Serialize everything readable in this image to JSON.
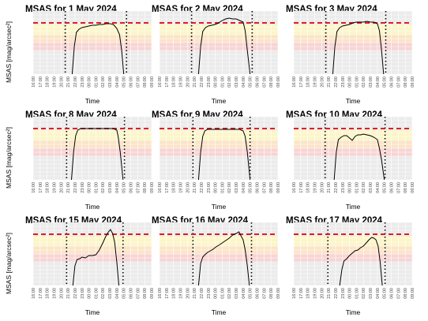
{
  "ylabel": "MSAS [mag/arcsec²]",
  "colors": {
    "panel_bg": "#ebebeb",
    "grid": "#ffffff",
    "band_yellow": "#fbf5c8",
    "band_orange": "#fbe4c8",
    "band_pink": "#f8d4d4",
    "reference_line": "#e00000",
    "curve": "#000000",
    "night_marker": "#000000"
  },
  "chart_data": [
    {
      "type": "line",
      "title": "MSAS for 1 May 2024",
      "xlabel": "Time",
      "x_ticks": [
        "16:00",
        "17:00",
        "18:00",
        "19:00",
        "20:00",
        "21:00",
        "22:00",
        "23:00",
        "00:00",
        "01:00",
        "02:00",
        "03:00",
        "04:00",
        "05:00",
        "06:00",
        "07:00",
        "08:00",
        "09:00"
      ],
      "xlim_hours": [
        16,
        33
      ],
      "ylim": [
        15,
        23
      ],
      "reference_value": 21.5,
      "night_start_hour": 20.6,
      "night_end_hour": 29.4,
      "bands": [
        {
          "from": 20,
          "to": 21.3,
          "color": "yellow"
        },
        {
          "from": 19,
          "to": 20,
          "color": "orange"
        },
        {
          "from": 18,
          "to": 19,
          "color": "pink"
        }
      ],
      "series": [
        {
          "hours": [
            21.6,
            21.9,
            22.2,
            22.6,
            23.0,
            23.5,
            24.0,
            24.5,
            25.0,
            25.5,
            26.0,
            26.5,
            27.0,
            27.5,
            28.0,
            28.4,
            28.7,
            29.0
          ],
          "values": [
            15.0,
            18.5,
            20.3,
            20.7,
            20.9,
            21.0,
            21.1,
            21.2,
            21.2,
            21.3,
            21.3,
            21.4,
            21.4,
            21.3,
            20.8,
            20.0,
            18.0,
            15.0
          ]
        }
      ]
    },
    {
      "type": "line",
      "title": "MSAS for 2 May 2024",
      "xlabel": "Time",
      "x_ticks": [
        "16:00",
        "17:00",
        "18:00",
        "19:00",
        "20:00",
        "21:00",
        "22:00",
        "23:00",
        "00:00",
        "01:00",
        "02:00",
        "03:00",
        "04:00",
        "05:00",
        "06:00",
        "07:00",
        "08:00",
        "09:00"
      ],
      "xlim_hours": [
        16,
        33
      ],
      "ylim": [
        15,
        23
      ],
      "reference_value": 21.5,
      "night_start_hour": 20.6,
      "night_end_hour": 29.3,
      "bands": [
        {
          "from": 20,
          "to": 21.3,
          "color": "yellow"
        },
        {
          "from": 19,
          "to": 20,
          "color": "orange"
        },
        {
          "from": 18,
          "to": 19,
          "color": "pink"
        }
      ],
      "series": [
        {
          "hours": [
            21.6,
            21.9,
            22.2,
            22.6,
            23.0,
            23.5,
            24.0,
            24.5,
            25.0,
            25.5,
            26.0,
            26.5,
            27.0,
            27.5,
            28.0,
            28.3,
            28.6,
            29.0
          ],
          "values": [
            15.0,
            18.5,
            20.4,
            20.9,
            21.1,
            21.2,
            21.3,
            21.5,
            21.8,
            22.0,
            22.1,
            22.0,
            22.0,
            21.8,
            21.6,
            20.5,
            18.0,
            15.0
          ]
        }
      ]
    },
    {
      "type": "line",
      "title": "MSAS for 3 May 2024",
      "xlabel": "Time",
      "x_ticks": [
        "16:00",
        "17:00",
        "18:00",
        "19:00",
        "20:00",
        "21:00",
        "22:00",
        "23:00",
        "00:00",
        "01:00",
        "02:00",
        "03:00",
        "04:00",
        "05:00",
        "06:00",
        "07:00",
        "08:00",
        "09:00"
      ],
      "xlim_hours": [
        16,
        33
      ],
      "ylim": [
        15,
        23
      ],
      "reference_value": 21.5,
      "night_start_hour": 20.6,
      "night_end_hour": 29.2,
      "bands": [
        {
          "from": 20,
          "to": 21.3,
          "color": "yellow"
        },
        {
          "from": 19,
          "to": 20,
          "color": "orange"
        },
        {
          "from": 18,
          "to": 19,
          "color": "pink"
        }
      ],
      "series": [
        {
          "hours": [
            21.6,
            21.9,
            22.2,
            22.6,
            23.0,
            23.5,
            24.0,
            24.5,
            25.0,
            25.5,
            26.0,
            26.5,
            27.0,
            27.5,
            28.0,
            28.3,
            28.6,
            28.9
          ],
          "values": [
            15.0,
            18.5,
            20.4,
            20.9,
            21.1,
            21.2,
            21.3,
            21.5,
            21.6,
            21.6,
            21.6,
            21.7,
            21.6,
            21.6,
            21.4,
            20.5,
            18.0,
            15.0
          ]
        }
      ]
    },
    {
      "type": "line",
      "title": "MSAS for 8 May 2024",
      "xlabel": "Time",
      "x_ticks": [
        "16:00",
        "17:00",
        "18:00",
        "19:00",
        "20:00",
        "21:00",
        "22:00",
        "23:00",
        "00:00",
        "01:00",
        "02:00",
        "03:00",
        "04:00",
        "05:00",
        "06:00",
        "07:00",
        "08:00",
        "09:00"
      ],
      "xlim_hours": [
        16,
        33
      ],
      "ylim": [
        15,
        23
      ],
      "reference_value": 21.5,
      "night_start_hour": 20.8,
      "night_end_hour": 29.1,
      "bands": [
        {
          "from": 20,
          "to": 21.3,
          "color": "yellow"
        },
        {
          "from": 19,
          "to": 20,
          "color": "orange"
        },
        {
          "from": 18,
          "to": 19,
          "color": "pink"
        }
      ],
      "series": [
        {
          "hours": [
            21.5,
            21.8,
            22.1,
            22.4,
            22.8,
            23.5,
            24.0,
            24.5,
            25.0,
            25.5,
            26.0,
            26.5,
            27.0,
            27.5,
            28.0,
            28.2,
            28.5,
            28.9
          ],
          "values": [
            15.0,
            18.5,
            20.6,
            21.3,
            21.5,
            21.5,
            21.5,
            21.5,
            21.5,
            21.5,
            21.5,
            21.5,
            21.5,
            21.5,
            21.3,
            20.5,
            18.5,
            15.0
          ]
        }
      ]
    },
    {
      "type": "line",
      "title": "MSAS for 9 May 2024",
      "xlabel": "Time",
      "x_ticks": [
        "16:00",
        "17:00",
        "18:00",
        "19:00",
        "20:00",
        "21:00",
        "22:00",
        "23:00",
        "00:00",
        "01:00",
        "02:00",
        "03:00",
        "04:00",
        "05:00",
        "06:00",
        "07:00",
        "08:00",
        "09:00"
      ],
      "xlim_hours": [
        16,
        33
      ],
      "ylim": [
        15,
        23
      ],
      "reference_value": 21.5,
      "night_start_hour": 20.8,
      "night_end_hour": 29.0,
      "bands": [
        {
          "from": 20,
          "to": 21.3,
          "color": "yellow"
        },
        {
          "from": 19,
          "to": 20,
          "color": "orange"
        },
        {
          "from": 18,
          "to": 19,
          "color": "pink"
        }
      ],
      "series": [
        {
          "hours": [
            21.6,
            21.9,
            22.2,
            22.5,
            22.9,
            23.5,
            24.0,
            24.5,
            25.0,
            25.5,
            26.0,
            26.5,
            27.0,
            27.5,
            28.0,
            28.3,
            28.6,
            29.0
          ],
          "values": [
            15.0,
            18.5,
            20.5,
            21.2,
            21.4,
            21.4,
            21.4,
            21.4,
            21.4,
            21.4,
            21.4,
            21.4,
            21.4,
            21.4,
            21.2,
            20.5,
            18.5,
            15.0
          ]
        }
      ]
    },
    {
      "type": "line",
      "title": "MSAS for 10 May 2024",
      "xlabel": "Time",
      "x_ticks": [
        "16:00",
        "17:00",
        "18:00",
        "19:00",
        "20:00",
        "21:00",
        "22:00",
        "23:00",
        "00:00",
        "01:00",
        "02:00",
        "03:00",
        "04:00",
        "05:00",
        "06:00",
        "07:00",
        "08:00",
        "09:00"
      ],
      "xlim_hours": [
        16,
        33
      ],
      "ylim": [
        15,
        23
      ],
      "reference_value": 21.5,
      "night_start_hour": 20.5,
      "night_end_hour": 29.1,
      "bands": [
        {
          "from": 20,
          "to": 21.3,
          "color": "yellow"
        },
        {
          "from": 19,
          "to": 20,
          "color": "orange"
        },
        {
          "from": 18,
          "to": 19,
          "color": "pink"
        }
      ],
      "series": [
        {
          "hours": [
            21.8,
            22.1,
            22.4,
            22.8,
            23.2,
            23.6,
            24.0,
            24.4,
            24.8,
            25.2,
            25.6,
            26.0,
            26.5,
            27.0,
            27.5,
            28.0,
            28.3,
            28.6,
            29.0
          ],
          "values": [
            15.0,
            18.5,
            20.1,
            20.4,
            20.6,
            20.6,
            20.3,
            20.0,
            20.5,
            20.7,
            20.7,
            20.8,
            20.7,
            20.6,
            20.4,
            20.1,
            19.0,
            17.5,
            15.0
          ]
        }
      ]
    },
    {
      "type": "line",
      "title": "MSAS for 15 May 2024",
      "xlabel": "Time",
      "x_ticks": [
        "16:00",
        "17:00",
        "18:00",
        "19:00",
        "20:00",
        "21:00",
        "22:00",
        "23:00",
        "00:00",
        "01:00",
        "02:00",
        "03:00",
        "04:00",
        "05:00",
        "06:00",
        "07:00",
        "08:00",
        "09:00"
      ],
      "xlim_hours": [
        16,
        33
      ],
      "ylim": [
        15,
        23
      ],
      "reference_value": 21.5,
      "night_start_hour": 20.8,
      "night_end_hour": 28.9,
      "bands": [
        {
          "from": 20,
          "to": 21.3,
          "color": "yellow"
        },
        {
          "from": 19,
          "to": 20,
          "color": "orange"
        },
        {
          "from": 18,
          "to": 19,
          "color": "pink"
        }
      ],
      "series": [
        {
          "hours": [
            21.7,
            22.0,
            22.3,
            22.7,
            23.0,
            23.5,
            24.0,
            24.5,
            25.0,
            25.5,
            26.0,
            26.4,
            26.8,
            27.1,
            27.4,
            27.7,
            28.0,
            28.3
          ],
          "values": [
            15.0,
            17.5,
            18.3,
            18.4,
            18.6,
            18.5,
            18.8,
            18.8,
            18.9,
            19.5,
            20.4,
            21.2,
            21.8,
            22.1,
            21.6,
            20.5,
            18.0,
            15.0
          ]
        }
      ]
    },
    {
      "type": "line",
      "title": "MSAS for 16 May 2024",
      "xlabel": "Time",
      "x_ticks": [
        "16:00",
        "17:00",
        "18:00",
        "19:00",
        "20:00",
        "21:00",
        "22:00",
        "23:00",
        "00:00",
        "01:00",
        "02:00",
        "03:00",
        "04:00",
        "05:00",
        "06:00",
        "07:00",
        "08:00",
        "09:00"
      ],
      "xlim_hours": [
        16,
        33
      ],
      "ylim": [
        15,
        23
      ],
      "reference_value": 21.5,
      "night_start_hour": 20.8,
      "night_end_hour": 29.2,
      "bands": [
        {
          "from": 20,
          "to": 21.3,
          "color": "yellow"
        },
        {
          "from": 19,
          "to": 20,
          "color": "orange"
        },
        {
          "from": 18,
          "to": 19,
          "color": "pink"
        }
      ],
      "series": [
        {
          "hours": [
            21.6,
            21.9,
            22.2,
            22.5,
            22.9,
            23.3,
            23.7,
            24.1,
            24.5,
            25.0,
            25.5,
            26.0,
            26.5,
            27.0,
            27.4,
            27.7,
            28.0,
            28.3,
            28.6,
            28.9
          ],
          "values": [
            15.0,
            17.8,
            18.6,
            18.9,
            19.2,
            19.4,
            19.6,
            19.9,
            20.1,
            20.4,
            20.7,
            21.0,
            21.4,
            21.6,
            21.8,
            21.3,
            20.8,
            19.5,
            17.5,
            15.0
          ]
        }
      ]
    },
    {
      "type": "line",
      "title": "MSAS for 17 May 2024",
      "xlabel": "Time",
      "x_ticks": [
        "16:00",
        "17:00",
        "18:00",
        "19:00",
        "20:00",
        "21:00",
        "22:00",
        "23:00",
        "00:00",
        "01:00",
        "02:00",
        "03:00",
        "04:00",
        "05:00",
        "06:00",
        "07:00",
        "08:00",
        "09:00"
      ],
      "xlim_hours": [
        16,
        33
      ],
      "ylim": [
        15,
        23
      ],
      "reference_value": 21.5,
      "night_start_hour": 20.9,
      "night_end_hour": 29.1,
      "bands": [
        {
          "from": 20,
          "to": 21.3,
          "color": "yellow"
        },
        {
          "from": 19,
          "to": 20,
          "color": "orange"
        },
        {
          "from": 18,
          "to": 19,
          "color": "pink"
        }
      ],
      "series": [
        {
          "hours": [
            22.6,
            22.9,
            23.2,
            23.6,
            24.0,
            24.4,
            24.8,
            25.2,
            25.6,
            26.0,
            26.4,
            26.8,
            27.2,
            27.5,
            27.8,
            28.1,
            28.4,
            28.7
          ],
          "values": [
            15.0,
            17.0,
            18.1,
            18.4,
            18.8,
            19.1,
            19.4,
            19.5,
            19.8,
            20.0,
            20.4,
            20.8,
            21.1,
            21.0,
            20.8,
            20.0,
            18.0,
            15.0
          ]
        }
      ]
    }
  ]
}
